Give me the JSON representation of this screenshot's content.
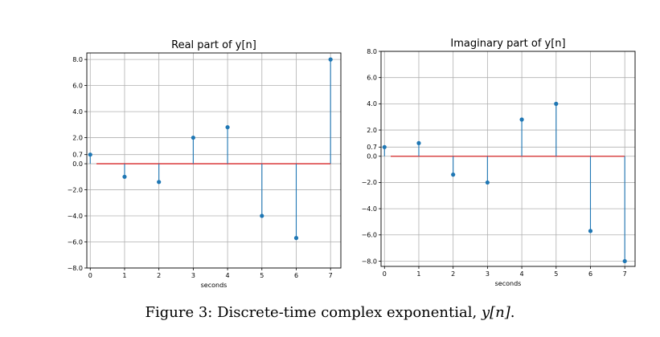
{
  "chart_data": [
    {
      "type": "stem",
      "title": "Real part of y[n]",
      "xlabel": "seconds",
      "ylabel": "",
      "x": [
        0,
        1,
        2,
        3,
        4,
        5,
        6,
        7
      ],
      "values": [
        0.7,
        -1.0,
        -1.4,
        2.0,
        2.8,
        -4.0,
        -5.7,
        8.0
      ],
      "xlim": [
        -0.1,
        7.3
      ],
      "ylim": [
        -8.0,
        8.5
      ],
      "xticks": [
        "0",
        "1",
        "2",
        "3",
        "4",
        "5",
        "6",
        "7"
      ],
      "yticks": [
        {
          "value": 8.0,
          "label": "8.0"
        },
        {
          "value": 6.0,
          "label": "6.0"
        },
        {
          "value": 4.0,
          "label": "4.0"
        },
        {
          "value": 2.0,
          "label": "2.0"
        },
        {
          "value": 0.7,
          "label": "0.7"
        },
        {
          "value": 0.0,
          "label": "0.0"
        },
        {
          "value": -2.0,
          "label": "−2.0"
        },
        {
          "value": -4.0,
          "label": "−4.0"
        },
        {
          "value": -6.0,
          "label": "−6.0"
        },
        {
          "value": -8.0,
          "label": "−8.0"
        }
      ],
      "grid": true,
      "colors": {
        "stem": "#1f77b4",
        "baseline": "#d62728",
        "grid": "#b0b0b0"
      }
    },
    {
      "type": "stem",
      "title": "Imaginary part of y[n]",
      "xlabel": "seconds",
      "ylabel": "",
      "x": [
        0,
        1,
        2,
        3,
        4,
        5,
        6,
        7
      ],
      "values": [
        0.7,
        1.0,
        -1.4,
        -2.0,
        2.8,
        4.0,
        -5.7,
        -8.0
      ],
      "xlim": [
        -0.1,
        7.3
      ],
      "ylim": [
        -8.4,
        8.0
      ],
      "xticks": [
        "0",
        "1",
        "2",
        "3",
        "4",
        "5",
        "6",
        "7"
      ],
      "yticks": [
        {
          "value": 8.0,
          "label": "8.0"
        },
        {
          "value": 6.0,
          "label": "6.0"
        },
        {
          "value": 4.0,
          "label": "4.0"
        },
        {
          "value": 2.0,
          "label": "2.0"
        },
        {
          "value": 0.7,
          "label": "0.7"
        },
        {
          "value": 0.0,
          "label": "0.0"
        },
        {
          "value": -2.0,
          "label": "−2.0"
        },
        {
          "value": -4.0,
          "label": "−4.0"
        },
        {
          "value": -6.0,
          "label": "−6.0"
        },
        {
          "value": -8.0,
          "label": "−8.0"
        }
      ],
      "grid": true,
      "colors": {
        "stem": "#1f77b4",
        "baseline": "#d62728",
        "grid": "#b0b0b0"
      }
    }
  ],
  "caption": {
    "prefix": "Figure 3: Discrete-time complex exponential, ",
    "math": "y[n]",
    "suffix": "."
  }
}
